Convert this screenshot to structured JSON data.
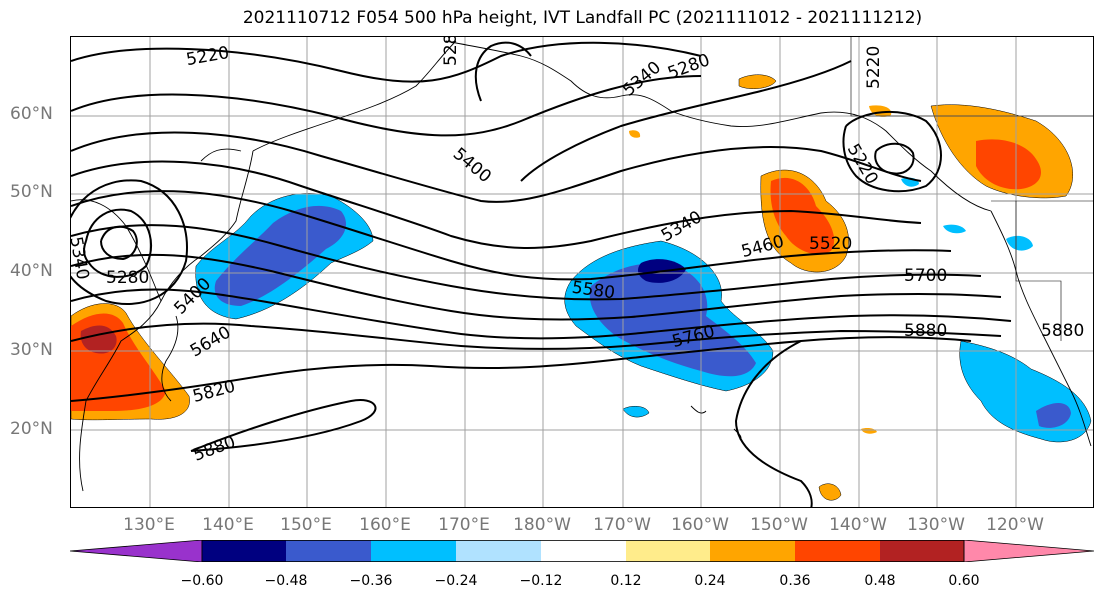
{
  "title": "2021110712 F054 500 hPa height, IVT Landfall PC (2021111012 - 2021111212)",
  "map": {
    "latitude_labels": [
      "60°N",
      "50°N",
      "40°N",
      "30°N",
      "20°N"
    ],
    "longitude_labels": [
      "130°E",
      "140°E",
      "150°E",
      "160°E",
      "170°E",
      "180°W",
      "170°W",
      "160°W",
      "150°W",
      "140°W",
      "130°W",
      "120°W"
    ],
    "contour_labels": [
      "5220",
      "5280",
      "5340",
      "5400",
      "5460",
      "5520",
      "5580",
      "5640",
      "5700",
      "5760",
      "5820",
      "5880",
      "5880",
      "5880",
      "5340",
      "5280",
      "5220",
      "5340",
      "5400",
      "5220"
    ],
    "positive_color": "#ff8000",
    "negative_color": "#00bfff"
  },
  "colorbar": {
    "tick_labels": [
      "−0.60",
      "−0.48",
      "−0.36",
      "−0.24",
      "−0.12",
      "0.12",
      "0.24",
      "0.36",
      "0.48",
      "0.60"
    ],
    "colors": [
      "#9932cc",
      "#000080",
      "#3a5acd",
      "#00bfff",
      "#b0e2ff",
      "#ffffff",
      "#ffec8b",
      "#ffa500",
      "#ff4500",
      "#b22222",
      "#ff88aa"
    ]
  }
}
